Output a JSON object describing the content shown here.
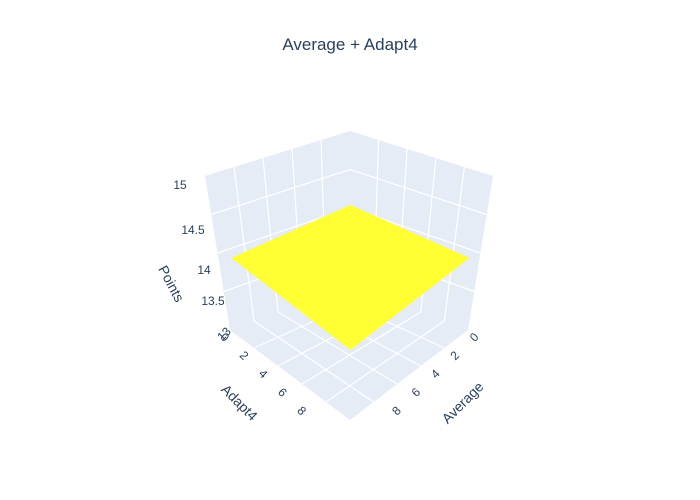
{
  "chart_data": {
    "type": "surface",
    "title": "Average + Adapt4",
    "x_axis": {
      "label": "Average",
      "range": [
        0,
        10
      ],
      "ticks": [
        0,
        2,
        4,
        6,
        8
      ]
    },
    "y_axis": {
      "label": "Adapt4",
      "range": [
        0,
        10
      ],
      "ticks": [
        0,
        2,
        4,
        6,
        8
      ]
    },
    "z_axis": {
      "label": "Points",
      "range": [
        13,
        15
      ],
      "ticks": [
        "13",
        "13.5",
        "14",
        "14.5",
        "15"
      ]
    },
    "surface": {
      "z": [
        [
          14,
          14
        ],
        [
          14,
          14
        ]
      ],
      "color": "#ffff33"
    },
    "colors": {
      "wall": "#e5ecf6",
      "grid": "#ffffff",
      "text": "#2a3f5f"
    },
    "grid": true
  }
}
